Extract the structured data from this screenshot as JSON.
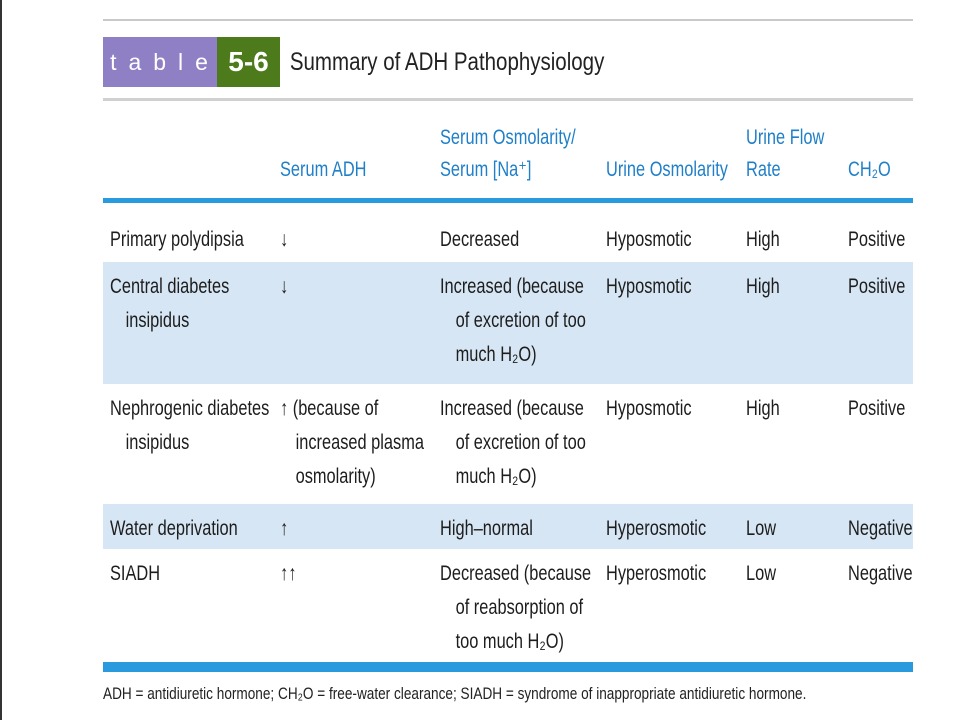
{
  "table": {
    "label_word": "table",
    "label_number": "5-6",
    "title": "Summary of ADH Pathophysiology"
  },
  "columns": [
    {
      "line1": "",
      "line2": "Serum ADH"
    },
    {
      "line1": "Serum Osmolarity/",
      "line2": "Serum [Na⁺]"
    },
    {
      "line1": "",
      "line2": "Urine Osmolarity"
    },
    {
      "line1": "Urine Flow",
      "line2": "Rate"
    },
    {
      "line1": "",
      "line2": "CH₂O"
    }
  ],
  "rows": [
    {
      "condition": [
        "Primary polydipsia"
      ],
      "adh": [
        "↓"
      ],
      "serum_osm": [
        "Decreased"
      ],
      "urine_osm": "Hyposmotic",
      "flow": "High",
      "ch2o": "Positive",
      "shaded": false
    },
    {
      "condition": [
        "Central diabetes",
        "insipidus"
      ],
      "adh": [
        "↓"
      ],
      "serum_osm": [
        "Increased (because",
        "of excretion of too",
        "much H₂O)"
      ],
      "urine_osm": "Hyposmotic",
      "flow": "High",
      "ch2o": "Positive",
      "shaded": true
    },
    {
      "condition": [
        "Nephrogenic diabetes",
        "insipidus"
      ],
      "adh": [
        "↑ (because of",
        "increased plasma",
        "osmolarity)"
      ],
      "serum_osm": [
        "Increased (because",
        "of excretion of too",
        "much H₂O)"
      ],
      "urine_osm": "Hyposmotic",
      "flow": "High",
      "ch2o": "Positive",
      "shaded": false
    },
    {
      "condition": [
        "Water deprivation"
      ],
      "adh": [
        "↑"
      ],
      "serum_osm": [
        "High–normal"
      ],
      "urine_osm": "Hyperosmotic",
      "flow": "Low",
      "ch2o": "Negative",
      "shaded": true
    },
    {
      "condition": [
        "SIADH"
      ],
      "adh": [
        "↑↑"
      ],
      "serum_osm": [
        "Decreased (because",
        "of reabsorption of",
        "too much H₂O)"
      ],
      "urine_osm": "Hyperosmotic",
      "flow": "Low",
      "ch2o": "Negative",
      "shaded": false
    }
  ],
  "footnote": "ADH = antidiuretic hormone; CH₂O = free-water clearance; SIADH = syndrome of inappropriate antidiuretic hormone.",
  "colors": {
    "tag_purple": "#8f7fc4",
    "tag_green": "#4d7a1b",
    "header_blue": "#1f7fc8",
    "rule_blue": "#2a9adf",
    "row_shade": "#d7e6f4"
  }
}
